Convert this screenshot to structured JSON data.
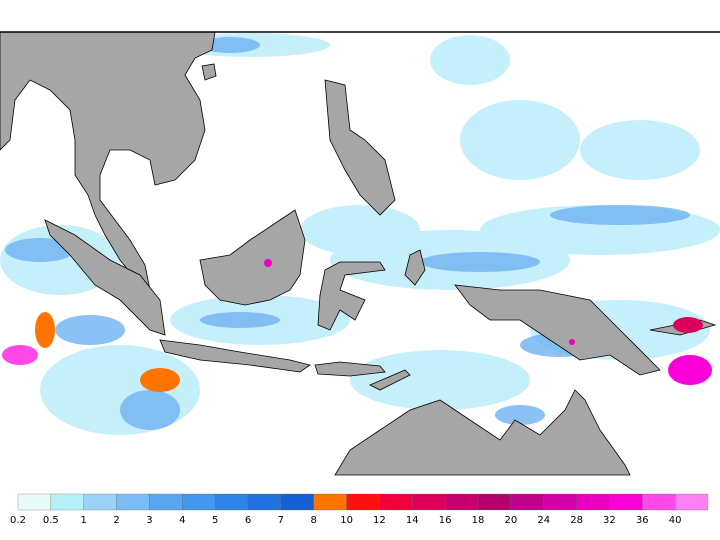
{
  "map": {
    "legend": {
      "labels": [
        0.2,
        0.5,
        1,
        2,
        3,
        4,
        5,
        6,
        7,
        8,
        10,
        12,
        14,
        16,
        18,
        20,
        24,
        28,
        32,
        36,
        40
      ],
      "colors": [
        "#e8fbfb",
        "#b4f0f5",
        "#9bd3f7",
        "#7cbcf5",
        "#5aa6f0",
        "#4596ee",
        "#2f84ea",
        "#2070e2",
        "#1560d4",
        "#ff7400",
        "#ff1010",
        "#f0003c",
        "#dc005a",
        "#c8006e",
        "#b4006e",
        "#c0008c",
        "#d400a8",
        "#ea00c0",
        "#fa00d8",
        "#ff48e8",
        "#ff80f4"
      ]
    }
  }
}
